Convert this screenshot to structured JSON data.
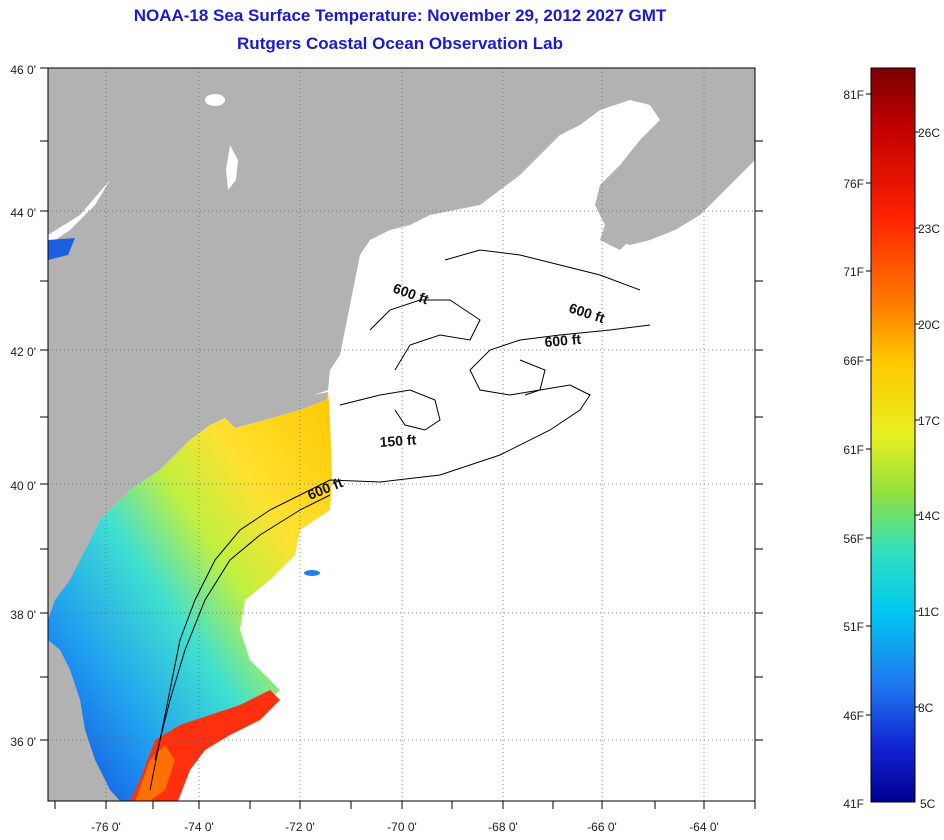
{
  "title": "NOAA-18 Sea Surface Temperature:  November 29, 2012 2027 GMT",
  "subtitle": "Rutgers Coastal Ocean Observation Lab",
  "lat_labels": [
    "46 0'",
    "44 0'",
    "42 0'",
    "40 0'",
    "38 0'",
    "36 0'"
  ],
  "lon_labels": [
    "-76 0'",
    "-74 0'",
    "-72 0'",
    "-70 0'",
    "-68 0'",
    "-66 0'",
    "-64 0'"
  ],
  "contour_labels": [
    "600 ft",
    "600 ft",
    "600 ft",
    "150 ft",
    "600 ft"
  ],
  "colorbar": {
    "f_labels": [
      "81F",
      "76F",
      "71F",
      "66F",
      "61F",
      "56F",
      "51F",
      "46F",
      "41F"
    ],
    "c_labels": [
      "26C",
      "23C",
      "20C",
      "17C",
      "14C",
      "11C",
      "8C",
      "5C"
    ],
    "colors": [
      "#7a0000",
      "#c00000",
      "#ff2000",
      "#ff7a00",
      "#ffc800",
      "#e8f020",
      "#90e040",
      "#30e0c0",
      "#00c8f0",
      "#1f78f0",
      "#1020d0",
      "#000090"
    ]
  },
  "colors": {
    "land": "#b2b2b2",
    "title": "#1a1ad0"
  }
}
